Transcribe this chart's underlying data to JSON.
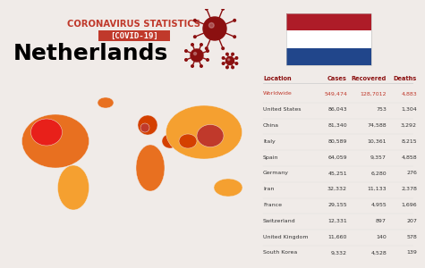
{
  "title1": "CORONAVIRUS STATISTICS",
  "title2": "[COVID-19]",
  "title3": "Netherlands",
  "bg_color": "#f0ebe8",
  "red_dark": "#8B1010",
  "red_mid": "#C0392B",
  "red_bright": "#e8201a",
  "orange_dark": "#d44000",
  "orange": "#e87020",
  "orange_light": "#f5a030",
  "yellow_orange": "#f8c060",
  "flag_colors": [
    "#AE1C28",
    "#FFFFFF",
    "#21468B"
  ],
  "table_header": [
    "Location",
    "Cases",
    "Recovered",
    "Deaths"
  ],
  "table_data": [
    [
      "Worldwide",
      "549,474",
      "128,7012",
      "4,883"
    ],
    [
      "United States",
      "86,043",
      "753",
      "1,304"
    ],
    [
      "China",
      "81,340",
      "74,588",
      "3,292"
    ],
    [
      "Italy",
      "80,589",
      "10,361",
      "8,215"
    ],
    [
      "Spain",
      "64,059",
      "9,357",
      "4,858"
    ],
    [
      "Germany",
      "45,251",
      "6,280",
      "276"
    ],
    [
      "Iran",
      "32,332",
      "11,133",
      "2,378"
    ],
    [
      "France",
      "29,155",
      "4,955",
      "1,696"
    ],
    [
      "Switzerland",
      "12,331",
      "897",
      "207"
    ],
    [
      "United Kingdom",
      "11,660",
      "140",
      "578"
    ],
    [
      "South Korea",
      "9,332",
      "4,528",
      "139"
    ]
  ],
  "worldwide_color": "#C0392B",
  "header_color": "#8B1010",
  "normal_row_color": "#333333",
  "title1_color": "#C0392B",
  "covid_box_color": "#C0392B",
  "virus_color": "#8B1010"
}
